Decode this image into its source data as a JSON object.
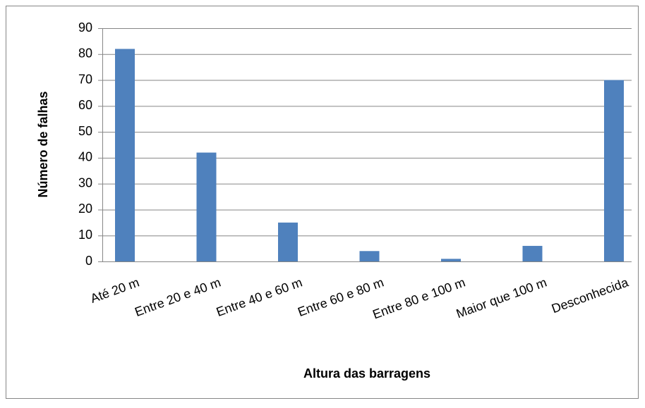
{
  "chart_data": {
    "type": "bar",
    "categories": [
      "Até 20 m",
      "Entre 20 e 40 m",
      "Entre 40 e 60 m",
      "Entre 60 e 80 m",
      "Entre 80 e 100 m",
      "Maior que 100 m",
      "Desconhecida"
    ],
    "values": [
      82,
      42,
      15,
      4,
      1,
      6,
      70
    ],
    "color": "#4f81bd",
    "x_label": "Altura das barragens",
    "y_label": "Número de falhas",
    "ylim": [
      0,
      90
    ],
    "yticks": [
      0,
      10,
      20,
      30,
      40,
      50,
      60,
      70,
      80,
      90
    ],
    "grid": true
  }
}
